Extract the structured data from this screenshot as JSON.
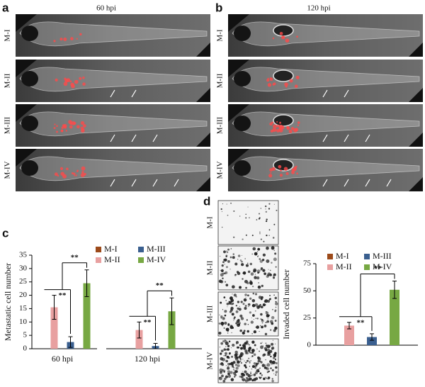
{
  "panels": [
    {
      "letter": "a",
      "title": "60 hpi",
      "rows": [
        "M-I",
        "M-II",
        "M-III",
        "M-IV"
      ]
    },
    {
      "letter": "b",
      "title": "120 hpi",
      "rows": [
        "M-I",
        "M-II",
        "M-III",
        "M-IV"
      ]
    },
    {
      "letter": "c"
    },
    {
      "letter": "d",
      "rows": [
        "M-I",
        "M-II",
        "M-III",
        "M-IV"
      ]
    }
  ],
  "chart_data": [
    {
      "type": "bar",
      "ylabel": "Metastatic cell number",
      "categories": [
        "60 hpi",
        "120 hpi"
      ],
      "series": [
        {
          "name": "M-I",
          "color": "#9c4a1a",
          "values": [
            0,
            0
          ],
          "errors": [
            null,
            null
          ]
        },
        {
          "name": "M-II",
          "color": "#e8a0a0",
          "values": [
            15.5,
            7
          ],
          "errors": [
            4.5,
            3
          ]
        },
        {
          "name": "M-III",
          "color": "#3a5f8f",
          "values": [
            2.5,
            1
          ],
          "errors": [
            2,
            1
          ]
        },
        {
          "name": "M-IV",
          "color": "#77a843",
          "values": [
            24.5,
            14
          ],
          "errors": [
            5,
            5
          ]
        }
      ],
      "ylim": [
        0,
        35
      ],
      "yticks": [
        0,
        5,
        10,
        15,
        20,
        25,
        30,
        35
      ],
      "significance": [
        [
          "**",
          "**"
        ],
        [
          "**",
          "**"
        ]
      ]
    },
    {
      "type": "bar",
      "ylabel": "Invaded cell number",
      "categories": [
        null
      ],
      "series": [
        {
          "name": "M-I",
          "color": "#9c4a1a",
          "values": [
            0
          ],
          "errors": [
            null
          ]
        },
        {
          "name": "M-II",
          "color": "#e8a0a0",
          "values": [
            18
          ],
          "errors": [
            3
          ]
        },
        {
          "name": "M-III",
          "color": "#3a5f8f",
          "values": [
            7.5
          ],
          "errors": [
            3
          ]
        },
        {
          "name": "M-IV",
          "color": "#77a843",
          "values": [
            51
          ],
          "errors": [
            8
          ]
        }
      ],
      "ylim": [
        0,
        75
      ],
      "yticks": [
        0,
        25,
        50,
        75
      ],
      "significance": [
        [
          "**",
          "**"
        ]
      ]
    }
  ]
}
